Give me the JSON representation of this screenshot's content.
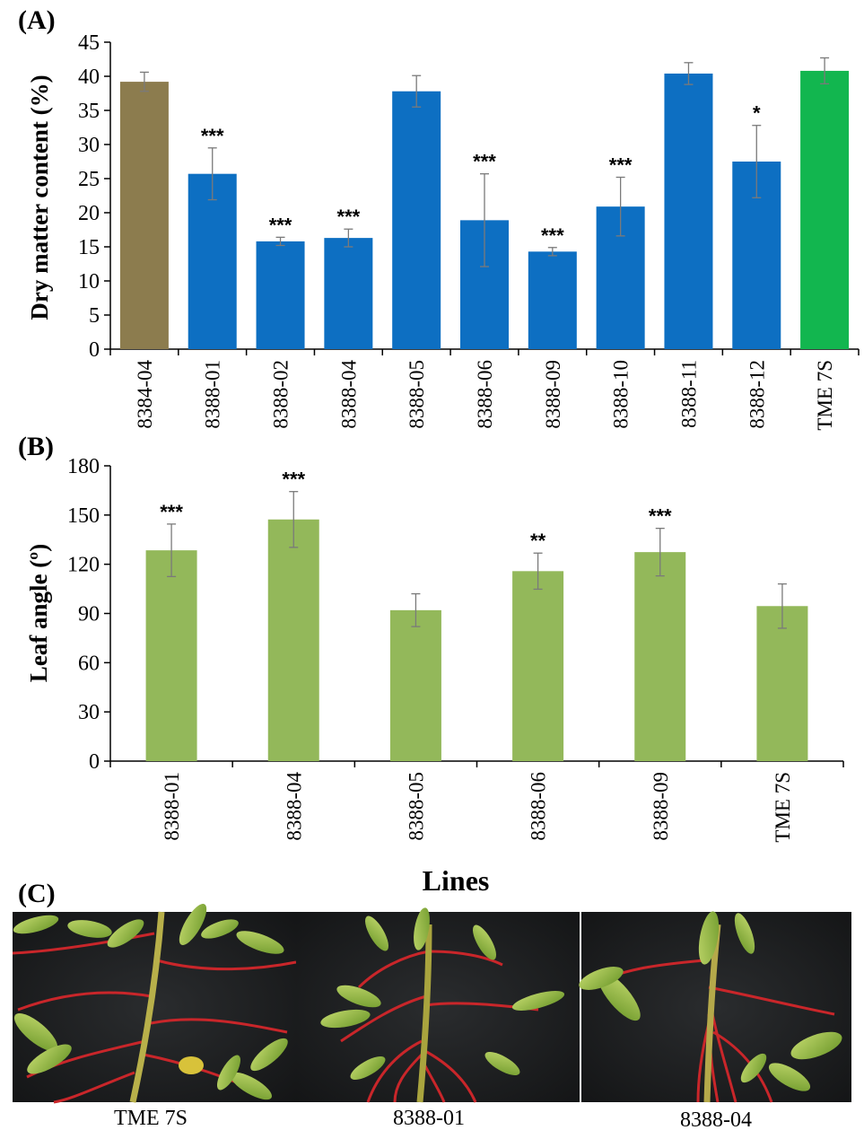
{
  "panels": {
    "a": "(A)",
    "b": "(B)",
    "c": "(C)"
  },
  "chart_data": [
    {
      "type": "bar",
      "ylabel": "Dry matter content (%)",
      "ylim": [
        0,
        45
      ],
      "yticks": [
        0,
        5,
        10,
        15,
        20,
        25,
        30,
        35,
        40,
        45
      ],
      "categories": [
        "8384-04",
        "8388-01",
        "8388-02",
        "8388-04",
        "8388-05",
        "8388-06",
        "8388-09",
        "8388-10",
        "8388-11",
        "8388-12",
        "TME 7S"
      ],
      "values": [
        39.2,
        25.7,
        15.8,
        16.3,
        37.8,
        18.9,
        14.3,
        20.9,
        40.4,
        27.5,
        40.8
      ],
      "errors": [
        1.4,
        3.8,
        0.6,
        1.3,
        2.3,
        6.8,
        0.6,
        4.3,
        1.6,
        5.3,
        1.9
      ],
      "significance": [
        "",
        "***",
        "***",
        "***",
        "",
        "***",
        "***",
        "***",
        "",
        "*",
        ""
      ],
      "colors": [
        "#8c7c4e",
        "#0d6fc2",
        "#0d6fc2",
        "#0d6fc2",
        "#0d6fc2",
        "#0d6fc2",
        "#0d6fc2",
        "#0d6fc2",
        "#0d6fc2",
        "#0d6fc2",
        "#12b64f"
      ],
      "grid": false
    },
    {
      "type": "bar",
      "ylabel": "Leaf angle (º)",
      "xlabel": "Lines",
      "ylim": [
        0,
        180
      ],
      "yticks": [
        0,
        30,
        60,
        90,
        120,
        150,
        180
      ],
      "categories": [
        "8388-01",
        "8388-04",
        "8388-05",
        "8388-06",
        "8388-09",
        "TME 7S"
      ],
      "values": [
        128.5,
        147.3,
        92.0,
        115.8,
        127.4,
        94.5
      ],
      "errors": [
        16.0,
        17.0,
        10.0,
        11.0,
        14.5,
        13.5
      ],
      "significance": [
        "***",
        "***",
        "",
        "**",
        "***",
        ""
      ],
      "colors": [
        "#93b85a",
        "#93b85a",
        "#93b85a",
        "#93b85a",
        "#93b85a",
        "#93b85a"
      ],
      "grid": false
    }
  ],
  "photos": [
    {
      "caption": "TME 7S"
    },
    {
      "caption": "8388-01"
    },
    {
      "caption": "8388-04"
    }
  ]
}
